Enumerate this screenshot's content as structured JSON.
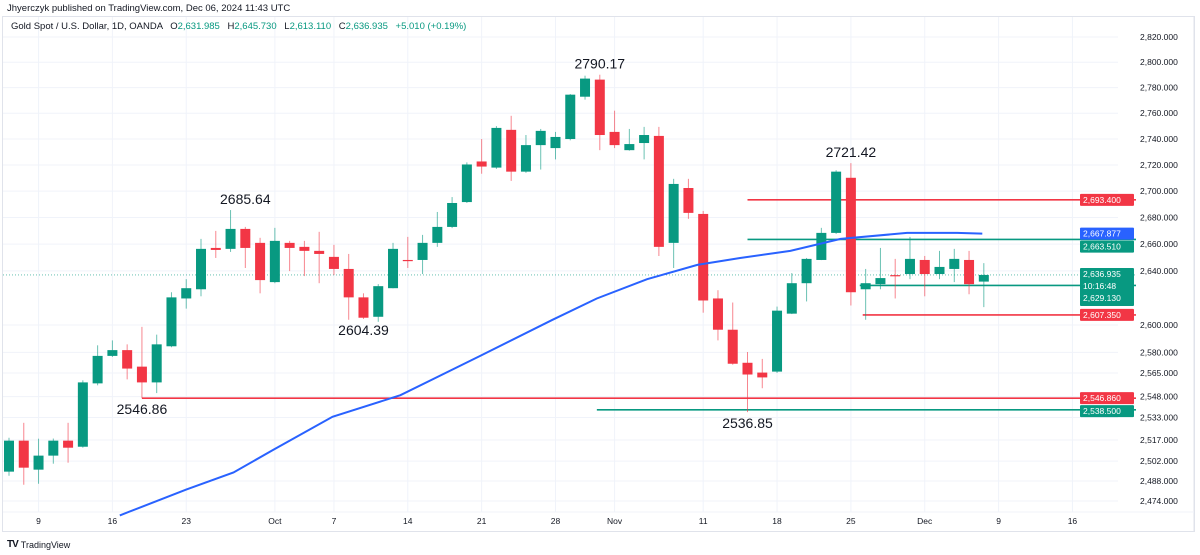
{
  "publisher": "Jhyerczyk published on TradingView.com, Dec 06, 2024 11:43 UTC",
  "legend": {
    "symbol": "Gold Spot / U.S. Dollar, 1D, OANDA",
    "o_label": "O",
    "o": "2,631.985",
    "h_label": "H",
    "h": "2,645.730",
    "l_label": "L",
    "l": "2,613.110",
    "c_label": "C",
    "c": "2,636.935",
    "change": "+5.010 (+0.19%)"
  },
  "footer": {
    "logo": "TV",
    "brand": "TradingView"
  },
  "colors": {
    "up": "#089981",
    "down": "#f23645",
    "ma": "#2962ff",
    "grid": "#f0f3fa"
  },
  "chart_data": {
    "type": "candlestick",
    "symbol": "XAUUSD",
    "interval": "1D",
    "y_scale": "log",
    "ylim": [
      2460,
      2830
    ],
    "y_ticks": [
      {
        "v": 2820,
        "t": "2,820.000"
      },
      {
        "v": 2800,
        "t": "2,800.000"
      },
      {
        "v": 2780,
        "t": "2,780.000"
      },
      {
        "v": 2760,
        "t": "2,760.000"
      },
      {
        "v": 2740,
        "t": "2,740.000"
      },
      {
        "v": 2720,
        "t": "2,720.000"
      },
      {
        "v": 2700,
        "t": "2,700.000"
      },
      {
        "v": 2680,
        "t": "2,680.000"
      },
      {
        "v": 2660,
        "t": "2,660.000"
      },
      {
        "v": 2640,
        "t": "2,640.000"
      },
      {
        "v": 2600,
        "t": "2,600.000"
      },
      {
        "v": 2580,
        "t": "2,580.000"
      },
      {
        "v": 2565,
        "t": "2,565.000"
      },
      {
        "v": 2548,
        "t": "2,548.000"
      },
      {
        "v": 2533,
        "t": "2,533.000"
      },
      {
        "v": 2517,
        "t": "2,517.000"
      },
      {
        "v": 2502,
        "t": "2,502.000"
      },
      {
        "v": 2488,
        "t": "2,488.000"
      },
      {
        "v": 2474,
        "t": "2,474.000"
      }
    ],
    "x_ticks": [
      {
        "i": 2,
        "t": "9"
      },
      {
        "i": 7,
        "t": "16"
      },
      {
        "i": 12,
        "t": "23"
      },
      {
        "i": 18,
        "t": "Oct"
      },
      {
        "i": 22,
        "t": "7"
      },
      {
        "i": 27,
        "t": "14"
      },
      {
        "i": 32,
        "t": "21"
      },
      {
        "i": 37,
        "t": "28"
      },
      {
        "i": 41,
        "t": "Nov"
      },
      {
        "i": 47,
        "t": "11"
      },
      {
        "i": 52,
        "t": "18"
      },
      {
        "i": 57,
        "t": "25"
      },
      {
        "i": 62,
        "t": "Dec"
      },
      {
        "i": 67,
        "t": "9"
      },
      {
        "i": 72,
        "t": "16"
      }
    ],
    "candles": [
      [
        2494.6,
        2518.6,
        2491.7,
        2516.5
      ],
      [
        2516.5,
        2529.2,
        2485.4,
        2497.4
      ],
      [
        2496.0,
        2517.9,
        2486.1,
        2505.9
      ],
      [
        2505.9,
        2518.0,
        2500.2,
        2516.5
      ],
      [
        2516.5,
        2529.2,
        2500.9,
        2511.5
      ],
      [
        2512.2,
        2559.7,
        2511.5,
        2558.2
      ],
      [
        2557.5,
        2585.1,
        2556.1,
        2577.4
      ],
      [
        2577.4,
        2588.7,
        2576.6,
        2581.6
      ],
      [
        2581.6,
        2585.8,
        2560.4,
        2568.2
      ],
      [
        2569.6,
        2598.6,
        2546.86,
        2558.2
      ],
      [
        2558.2,
        2592.9,
        2550.5,
        2585.8
      ],
      [
        2584.4,
        2624.1,
        2583.7,
        2620.3
      ],
      [
        2619.5,
        2633.8,
        2612.0,
        2627.1
      ],
      [
        2626.3,
        2663.9,
        2621.1,
        2656.4
      ],
      [
        2657.1,
        2669.9,
        2649.6,
        2655.6
      ],
      [
        2656.4,
        2685.64,
        2654.1,
        2671.4
      ],
      [
        2671.4,
        2672.9,
        2642.1,
        2657.1
      ],
      [
        2660.9,
        2664.7,
        2623.3,
        2633.1
      ],
      [
        2631.6,
        2672.2,
        2630.8,
        2662.4
      ],
      [
        2660.9,
        2662.4,
        2639.8,
        2657.1
      ],
      [
        2657.9,
        2662.4,
        2636.1,
        2654.9
      ],
      [
        2654.9,
        2669.2,
        2630.8,
        2652.6
      ],
      [
        2650.4,
        2659.4,
        2636.8,
        2641.4
      ],
      [
        2641.4,
        2652.6,
        2603.8,
        2620.3
      ],
      [
        2620.3,
        2623.3,
        2604.39,
        2605.3
      ],
      [
        2606.0,
        2630.1,
        2602.3,
        2628.6
      ],
      [
        2627.1,
        2660.9,
        2627.0,
        2656.4
      ],
      [
        2648.1,
        2665.4,
        2642.1,
        2647.4
      ],
      [
        2648.1,
        2666.9,
        2637.6,
        2660.9
      ],
      [
        2660.9,
        2684.2,
        2657.9,
        2672.9
      ],
      [
        2672.9,
        2695.5,
        2672.0,
        2691.0
      ],
      [
        2691.7,
        2722.0,
        2691.0,
        2720.4
      ],
      [
        2722.7,
        2740.0,
        2713.3,
        2718.8
      ],
      [
        2718.0,
        2750.0,
        2717.0,
        2748.6
      ],
      [
        2747.1,
        2758.0,
        2707.8,
        2714.9
      ],
      [
        2714.9,
        2743.1,
        2714.0,
        2735.3
      ],
      [
        2735.3,
        2747.8,
        2716.5,
        2746.3
      ],
      [
        2733.0,
        2745.5,
        2724.3,
        2741.6
      ],
      [
        2740.0,
        2775.0,
        2739.0,
        2774.5
      ],
      [
        2772.9,
        2789.4,
        2770.6,
        2787.1
      ],
      [
        2786.3,
        2790.17,
        2731.4,
        2743.1
      ],
      [
        2745.5,
        2762.0,
        2733.0,
        2735.3
      ],
      [
        2731.4,
        2747.8,
        2731.0,
        2736.1
      ],
      [
        2736.9,
        2749.4,
        2724.3,
        2743.1
      ],
      [
        2742.4,
        2749.4,
        2651.1,
        2657.9
      ],
      [
        2660.9,
        2709.4,
        2642.1,
        2705.5
      ],
      [
        2702.4,
        2709.4,
        2679.0,
        2683.5
      ],
      [
        2682.7,
        2685.0,
        2609.0,
        2618.0
      ],
      [
        2619.5,
        2625.6,
        2588.7,
        2596.5
      ],
      [
        2596.5,
        2616.5,
        2571.0,
        2571.7
      ],
      [
        2572.4,
        2580.2,
        2536.85,
        2563.9
      ],
      [
        2565.3,
        2575.2,
        2554.0,
        2561.8
      ],
      [
        2566.0,
        2613.5,
        2565.0,
        2610.5
      ],
      [
        2608.3,
        2638.3,
        2608.0,
        2630.8
      ],
      [
        2630.8,
        2649.6,
        2617.3,
        2648.9
      ],
      [
        2648.1,
        2672.2,
        2648.0,
        2668.4
      ],
      [
        2668.4,
        2716.0,
        2667.6,
        2714.9
      ],
      [
        2710.2,
        2721.42,
        2614.3,
        2624.1
      ],
      [
        2626.3,
        2641.4,
        2603.8,
        2630.8
      ],
      [
        2630.1,
        2657.1,
        2626.3,
        2634.6
      ],
      [
        2636.8,
        2648.9,
        2619.5,
        2636.1
      ],
      [
        2637.6,
        2665.4,
        2633.8,
        2648.9
      ],
      [
        2648.1,
        2651.1,
        2621.1,
        2637.6
      ],
      [
        2637.6,
        2654.9,
        2633.8,
        2642.9
      ],
      [
        2641.4,
        2656.4,
        2631.6,
        2648.9
      ],
      [
        2648.1,
        2654.9,
        2622.6,
        2630.1
      ],
      [
        2631.985,
        2645.73,
        2613.11,
        2636.935
      ]
    ],
    "candle_fields": [
      "open",
      "high",
      "low",
      "close"
    ],
    "moving_average": [
      [
        7.5,
        2464
      ],
      [
        12,
        2482
      ],
      [
        15.2,
        2494
      ],
      [
        17.9,
        2510
      ],
      [
        21.9,
        2533.5
      ],
      [
        26.5,
        2549
      ],
      [
        31.9,
        2577.4
      ],
      [
        36.8,
        2603.8
      ],
      [
        39.8,
        2619.5
      ],
      [
        43.2,
        2633.8
      ],
      [
        46.6,
        2644.4
      ],
      [
        49.5,
        2649.6
      ],
      [
        52.9,
        2654.9
      ],
      [
        56.3,
        2663.9
      ],
      [
        60.8,
        2668.4
      ],
      [
        64.2,
        2668.4
      ],
      [
        65.9,
        2667.877
      ]
    ],
    "horizontal_lines": [
      {
        "price": 2693.4,
        "start": 50,
        "color": "down",
        "label": "2,693.400"
      },
      {
        "price": 2663.51,
        "start": 50,
        "color": "up",
        "label": "2,663.510"
      },
      {
        "price": 2629.13,
        "start": 57.6,
        "color": "up",
        "label": "2,629.130"
      },
      {
        "price": 2607.35,
        "start": 57.8,
        "color": "down",
        "label": "2,607.350"
      },
      {
        "price": 2546.86,
        "start": 9,
        "color": "down",
        "label": "2,546.860"
      },
      {
        "price": 2538.5,
        "start": 39.8,
        "color": "up",
        "label": "2,538.500"
      }
    ],
    "ma_label": {
      "price": 2667.877,
      "label": "2,667.877"
    },
    "current_price": {
      "price": 2636.935,
      "label": "2,636.935",
      "countdown": "10:16:48"
    },
    "annotations": [
      {
        "i": 16,
        "price": 2685.64,
        "text": "2685.64",
        "pos": "above"
      },
      {
        "i": 9,
        "price": 2546.86,
        "text": "2546.86",
        "pos": "below"
      },
      {
        "i": 24,
        "price": 2604.39,
        "text": "2604.39",
        "pos": "below"
      },
      {
        "i": 40,
        "price": 2790.17,
        "text": "2790.17",
        "pos": "above"
      },
      {
        "i": 50,
        "price": 2536.85,
        "text": "2536.85",
        "pos": "below"
      },
      {
        "i": 57,
        "price": 2721.42,
        "text": "2721.42",
        "pos": "above"
      }
    ]
  }
}
